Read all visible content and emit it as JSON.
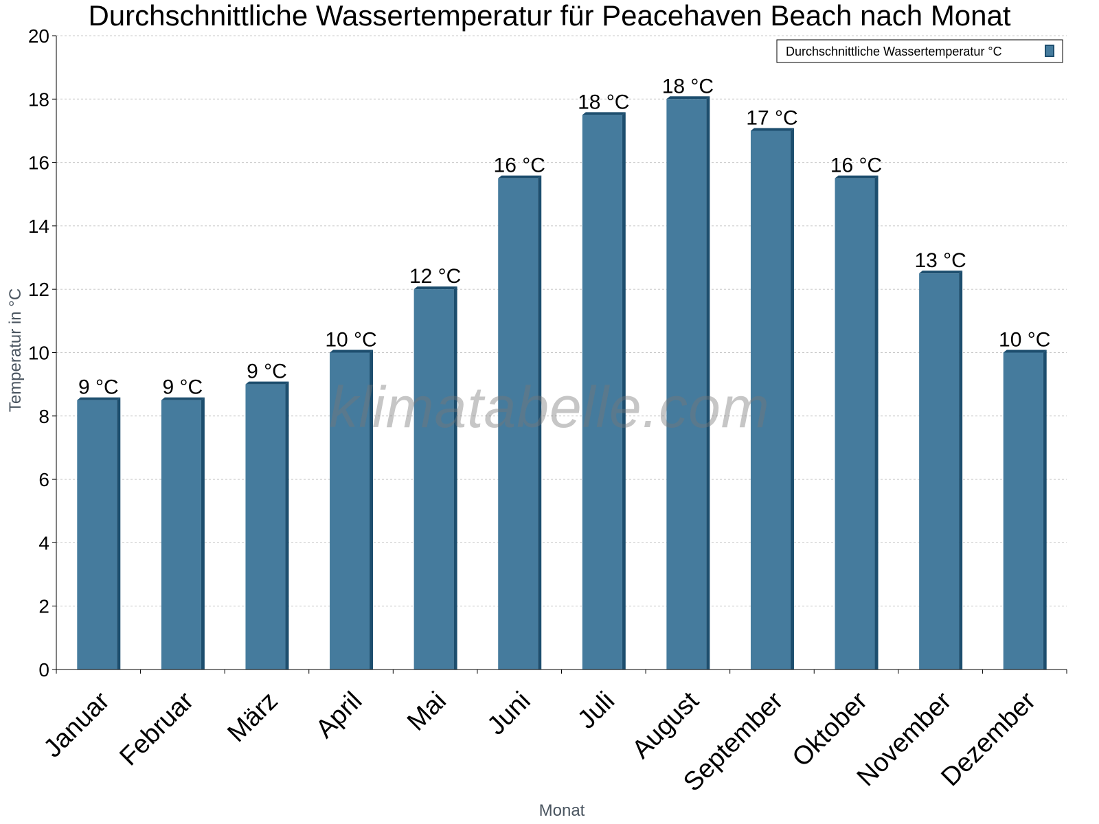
{
  "chart_data": {
    "type": "bar",
    "title": "Durchschnittliche Wassertemperatur für Peacehaven Beach nach Monat",
    "xlabel": "Monat",
    "ylabel": "Temperatur in °C",
    "ylim": [
      0,
      20
    ],
    "yticks": [
      0,
      2,
      4,
      6,
      8,
      10,
      12,
      14,
      16,
      18,
      20
    ],
    "grid": true,
    "legend_position": "top-right",
    "categories": [
      "Januar",
      "Februar",
      "März",
      "April",
      "Mai",
      "Juni",
      "Juli",
      "August",
      "September",
      "Oktober",
      "November",
      "Dezember"
    ],
    "series": [
      {
        "name": "Durchschnittliche Wassertemperatur °C",
        "values": [
          8.5,
          8.5,
          9,
          10,
          12,
          15.5,
          17.5,
          18,
          17,
          15.5,
          12.5,
          10
        ],
        "labels": [
          "9 °C",
          "9 °C",
          "9 °C",
          "10 °C",
          "12 °C",
          "16 °C",
          "18 °C",
          "18 °C",
          "17 °C",
          "16 °C",
          "13 °C",
          "10 °C"
        ],
        "color": "#457b9d",
        "edge_color": "#1d4e6e"
      }
    ]
  },
  "watermark": "klimatabelle.com"
}
